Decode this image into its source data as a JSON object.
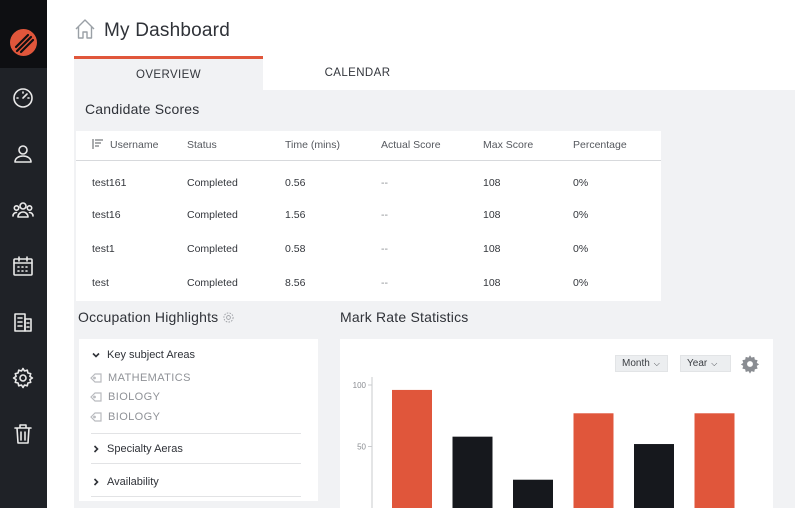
{
  "header": {
    "title": "My Dashboard"
  },
  "tabs": [
    {
      "label": "OVERVIEW",
      "active": true
    },
    {
      "label": "CALENDAR",
      "active": false
    }
  ],
  "sidebar": {
    "icons": [
      "logo-icon",
      "speedometer-icon",
      "user-icon",
      "users-icon",
      "calendar-icon",
      "building-icon",
      "gear-icon",
      "trash-icon"
    ]
  },
  "candidate_scores": {
    "title": "Candidate Scores",
    "columns": [
      "Username",
      "Status",
      "Time (mins)",
      "Actual Score",
      "Max Score",
      "Percentage"
    ],
    "rows": [
      {
        "username": "test161",
        "status": "Completed",
        "time": "0.56",
        "actual": "--",
        "max": "108",
        "percentage": "0%"
      },
      {
        "username": "test16",
        "status": "Completed",
        "time": "1.56",
        "actual": "--",
        "max": "108",
        "percentage": "0%"
      },
      {
        "username": "test1",
        "status": "Completed",
        "time": "0.58",
        "actual": "--",
        "max": "108",
        "percentage": "0%"
      },
      {
        "username": "test",
        "status": "Completed",
        "time": "8.56",
        "actual": "--",
        "max": "108",
        "percentage": "0%"
      }
    ]
  },
  "occupation": {
    "title": "Occupation Highlights",
    "groups": [
      {
        "label": "Key subject Areas",
        "expanded": true,
        "items": [
          "MATHEMATICS",
          "BIOLOGY",
          "BIOLOGY"
        ]
      },
      {
        "label": "Specialty Aeras",
        "expanded": false
      },
      {
        "label": "Availability",
        "expanded": false
      }
    ]
  },
  "mark_rate": {
    "title": "Mark Rate Statistics",
    "filters": {
      "month": "Month",
      "year": "Year"
    }
  },
  "chart_data": {
    "type": "bar",
    "title": "",
    "xlabel": "",
    "ylabel": "",
    "y_ticks": [
      "100",
      "50"
    ],
    "ylim": [
      0,
      115
    ],
    "values": [
      96,
      58,
      23,
      77,
      52,
      77
    ],
    "colors": [
      "#e0563b",
      "#16181d",
      "#16181d",
      "#e0563b",
      "#16181d",
      "#e0563b"
    ],
    "grid": false
  },
  "colors": {
    "accent": "#e0563b",
    "dark": "#16181d",
    "sidebar": "#1f2227",
    "content_bg": "#f1f2f4"
  }
}
